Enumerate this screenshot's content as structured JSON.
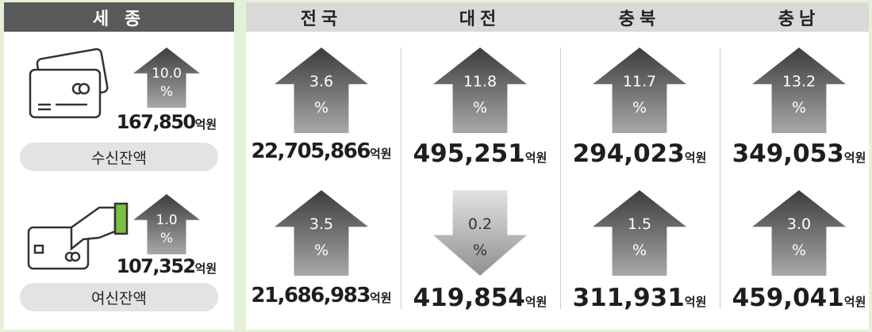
{
  "sejong": {
    "title": "세 종",
    "rows": [
      {
        "label": "수신잔액",
        "change": "10.0",
        "direction": "up",
        "amount": "167,850"
      },
      {
        "label": "여신잔액",
        "change": "1.0",
        "direction": "up",
        "amount": "107,352"
      }
    ]
  },
  "regions": {
    "columns": [
      "전국",
      "대전",
      "충북",
      "충남"
    ],
    "rows": [
      [
        {
          "change": "3.6",
          "direction": "up",
          "amount": "22,705,866"
        },
        {
          "change": "11.8",
          "direction": "up",
          "amount": "495,251"
        },
        {
          "change": "11.7",
          "direction": "up",
          "amount": "294,023"
        },
        {
          "change": "13.2",
          "direction": "up",
          "amount": "349,053"
        }
      ],
      [
        {
          "change": "3.5",
          "direction": "up",
          "amount": "21,686,983"
        },
        {
          "change": "0.2",
          "direction": "down",
          "amount": "419,854"
        },
        {
          "change": "1.5",
          "direction": "up",
          "amount": "311,931"
        },
        {
          "change": "3.0",
          "direction": "up",
          "amount": "459,041"
        }
      ]
    ]
  },
  "unit": "억원",
  "percent": "%"
}
